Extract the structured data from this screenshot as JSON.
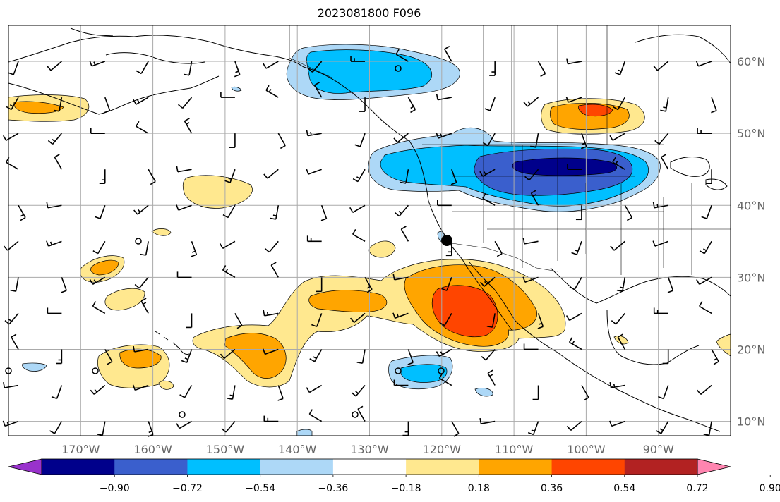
{
  "title": "2023081800 F096",
  "map": {
    "projection": "equirectangular",
    "extent": {
      "lon_min": -180,
      "lon_max": -80,
      "lat_min": 8,
      "lat_max": 65
    },
    "longitude_labels": [
      "170°W",
      "160°W",
      "150°W",
      "140°W",
      "130°W",
      "120°W",
      "110°W",
      "100°W",
      "90°W"
    ],
    "latitude_labels": [
      "10°N",
      "20°N",
      "30°N",
      "40°N",
      "50°N",
      "60°N"
    ],
    "field": "anomaly (shaded) with wind barbs",
    "marker": {
      "lon": -119,
      "lat": 35.2
    }
  },
  "colorbar": {
    "tick_labels": [
      "−0.90",
      "−0.72",
      "−0.54",
      "−0.36",
      "−0.18",
      "0.18",
      "0.36",
      "0.54",
      "0.72",
      "0.90"
    ],
    "colors": [
      "#9932cc",
      "#00008b",
      "#3a5fcd",
      "#00bfff",
      "#add8f7",
      "#ffffff",
      "#ffe88f",
      "#ffa500",
      "#ff4500",
      "#b22222",
      "#ff85b0"
    ],
    "extend": "both"
  },
  "colors": {
    "land_outline": "#000000",
    "grid": "#aaaaaa",
    "axis_label": "#666666"
  }
}
